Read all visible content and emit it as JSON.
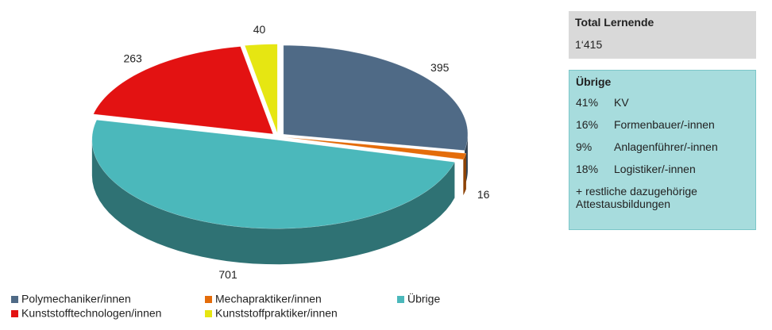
{
  "chart_data": {
    "type": "pie3d",
    "categories": [
      "Polymechaniker/innen",
      "Mechapraktiker/innen",
      "Übrige",
      "Kunststofftechnologen/innen",
      "Kunststoffpraktiker/innen"
    ],
    "values": [
      395,
      16,
      701,
      263,
      40
    ],
    "colors": [
      "#4f6a86",
      "#e46c0a",
      "#4bb8bb",
      "#e31212",
      "#e6e612"
    ]
  },
  "panel": {
    "total": {
      "title": "Total Lernende",
      "value": "1‘415"
    },
    "breakdown": {
      "title": "Übrige",
      "rows": [
        [
          "41%",
          "KV"
        ],
        [
          "16%",
          "Formenbauer/-innen"
        ],
        [
          "9%",
          "Anlagenführer/-innen"
        ],
        [
          "18%",
          "Logistiker/-innen"
        ]
      ],
      "note": "+ restliche dazugehörige Attestausbildungen"
    }
  }
}
